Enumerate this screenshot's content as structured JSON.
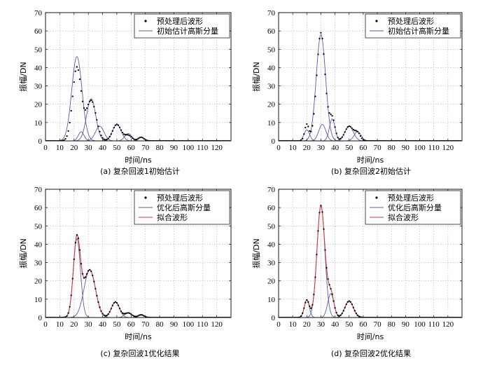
{
  "colors": {
    "component": "#5a5ab4",
    "fitted": "#d23c3c",
    "points": "#000000",
    "grid": "#b5b5b5"
  },
  "chart_data": [
    {
      "id": "a",
      "type": "line",
      "caption": "(a) 复杂回波1初始估计",
      "xlabel": "时间/ns",
      "ylabel": "振幅/DN",
      "xlim": [
        0,
        130
      ],
      "ylim": [
        0,
        70
      ],
      "xticks": [
        0,
        10,
        20,
        30,
        40,
        50,
        60,
        70,
        80,
        90,
        100,
        110,
        120
      ],
      "yticks": [
        0,
        10,
        20,
        30,
        40,
        50,
        60,
        70
      ],
      "grid": true,
      "legend_position": "top-right",
      "legend": [
        {
          "label": "预处理后波形",
          "style": "points"
        },
        {
          "label": "初始估计高斯分量",
          "style": "component"
        }
      ],
      "samples": {
        "x_start": 0,
        "x_end": 129,
        "step": 1
      },
      "point_components": [
        {
          "amplitude": 40,
          "center": 22,
          "sigma": 3.0
        },
        {
          "amplitude": 22,
          "center": 32,
          "sigma": 3.5
        },
        {
          "amplitude": 9,
          "center": 50,
          "sigma": 3.0
        },
        {
          "amplitude": 3,
          "center": 58,
          "sigma": 2.5
        },
        {
          "amplitude": 2,
          "center": 67,
          "sigma": 2.0
        }
      ],
      "components": [
        {
          "amplitude": 46,
          "center": 22,
          "sigma": 3.6
        },
        {
          "amplitude": 5,
          "center": 25,
          "sigma": 2.0
        },
        {
          "amplitude": 23,
          "center": 32,
          "sigma": 3.2
        },
        {
          "amplitude": 8,
          "center": 38,
          "sigma": 3.0
        },
        {
          "amplitude": 9,
          "center": 50,
          "sigma": 3.0
        },
        {
          "amplitude": 4,
          "center": 58,
          "sigma": 2.5
        },
        {
          "amplitude": 2,
          "center": 67,
          "sigma": 2.0
        }
      ],
      "fitted": null
    },
    {
      "id": "b",
      "type": "line",
      "caption": "(b) 复杂回波2初始估计",
      "xlabel": "时间/ns",
      "ylabel": "振幅/DN",
      "xlim": [
        0,
        130
      ],
      "ylim": [
        0,
        70
      ],
      "xticks": [
        0,
        10,
        20,
        30,
        40,
        50,
        60,
        70,
        80,
        90,
        100,
        110,
        120
      ],
      "yticks": [
        0,
        10,
        20,
        30,
        40,
        50,
        60,
        70
      ],
      "grid": true,
      "legend_position": "top-right",
      "legend": [
        {
          "label": "预处理后波形",
          "style": "points"
        },
        {
          "label": "初始估计高斯分量",
          "style": "component"
        }
      ],
      "samples": {
        "x_start": 0,
        "x_end": 129,
        "step": 1
      },
      "point_components": [
        {
          "amplitude": 9,
          "center": 20,
          "sigma": 1.5
        },
        {
          "amplitude": 59,
          "center": 30,
          "sigma": 3.0
        },
        {
          "amplitude": 12,
          "center": 38,
          "sigma": 2.0
        },
        {
          "amplitude": 8,
          "center": 50,
          "sigma": 3.0
        },
        {
          "amplitude": 4,
          "center": 56,
          "sigma": 2.0
        }
      ],
      "components": [
        {
          "amplitude": 6,
          "center": 20,
          "sigma": 2.0
        },
        {
          "amplitude": 58,
          "center": 30,
          "sigma": 3.3
        },
        {
          "amplitude": 9,
          "center": 31,
          "sigma": 2.5
        },
        {
          "amplitude": 12,
          "center": 38,
          "sigma": 2.0
        },
        {
          "amplitude": 8,
          "center": 50,
          "sigma": 3.0
        },
        {
          "amplitude": 5,
          "center": 56,
          "sigma": 2.5
        }
      ],
      "fitted": null
    },
    {
      "id": "c",
      "type": "line",
      "caption": "(c) 复杂回波1优化结果",
      "xlabel": "时间/ns",
      "ylabel": "振幅/DN",
      "xlim": [
        0,
        130
      ],
      "ylim": [
        0,
        70
      ],
      "xticks": [
        0,
        10,
        20,
        30,
        40,
        50,
        60,
        70,
        80,
        90,
        100,
        110,
        120
      ],
      "yticks": [
        0,
        10,
        20,
        30,
        40,
        50,
        60,
        70
      ],
      "grid": true,
      "legend_position": "top-right",
      "legend": [
        {
          "label": "预处理后波形",
          "style": "points"
        },
        {
          "label": "优化后高斯分量",
          "style": "component"
        },
        {
          "label": "拟合波形",
          "style": "fitted"
        }
      ],
      "samples": {
        "x_start": 0,
        "x_end": 129,
        "step": 1
      },
      "point_components": [
        {
          "amplitude": 43,
          "center": 22,
          "sigma": 2.5
        },
        {
          "amplitude": 26,
          "center": 31,
          "sigma": 4.0
        },
        {
          "amplitude": 8.5,
          "center": 49,
          "sigma": 2.8
        },
        {
          "amplitude": 2.5,
          "center": 58,
          "sigma": 2.5
        },
        {
          "amplitude": 1.5,
          "center": 67,
          "sigma": 2.0
        }
      ],
      "components": [
        {
          "amplitude": 43,
          "center": 22,
          "sigma": 2.5
        },
        {
          "amplitude": 26,
          "center": 31,
          "sigma": 4.0
        },
        {
          "amplitude": 8.5,
          "center": 49,
          "sigma": 2.8
        },
        {
          "amplitude": 2.5,
          "center": 58,
          "sigma": 2.5
        },
        {
          "amplitude": 1.5,
          "center": 67,
          "sigma": 2.0
        }
      ],
      "fitted": "sum"
    },
    {
      "id": "d",
      "type": "line",
      "caption": "(d) 复杂回波2优化结果",
      "xlabel": "时间/ns",
      "ylabel": "振幅/DN",
      "xlim": [
        0,
        130
      ],
      "ylim": [
        0,
        70
      ],
      "xticks": [
        0,
        10,
        20,
        30,
        40,
        50,
        60,
        70,
        80,
        90,
        100,
        110,
        120
      ],
      "yticks": [
        0,
        10,
        20,
        30,
        40,
        50,
        60,
        70
      ],
      "grid": true,
      "legend_position": "top-right",
      "legend": [
        {
          "label": "预处理后波形",
          "style": "points"
        },
        {
          "label": "优化后高斯分量",
          "style": "component"
        },
        {
          "label": "拟合波形",
          "style": "fitted"
        }
      ],
      "samples": {
        "x_start": 0,
        "x_end": 129,
        "step": 1
      },
      "point_components": [
        {
          "amplitude": 9.5,
          "center": 20,
          "sigma": 1.8
        },
        {
          "amplitude": 61,
          "center": 30,
          "sigma": 2.8
        },
        {
          "amplitude": 13,
          "center": 37,
          "sigma": 2.2
        },
        {
          "amplitude": 9,
          "center": 50,
          "sigma": 3.0
        }
      ],
      "components": [
        {
          "amplitude": 9.5,
          "center": 20,
          "sigma": 1.8
        },
        {
          "amplitude": 61,
          "center": 30,
          "sigma": 2.8
        },
        {
          "amplitude": 13,
          "center": 37,
          "sigma": 2.2
        },
        {
          "amplitude": 9,
          "center": 50,
          "sigma": 3.0
        }
      ],
      "fitted": "sum"
    }
  ]
}
